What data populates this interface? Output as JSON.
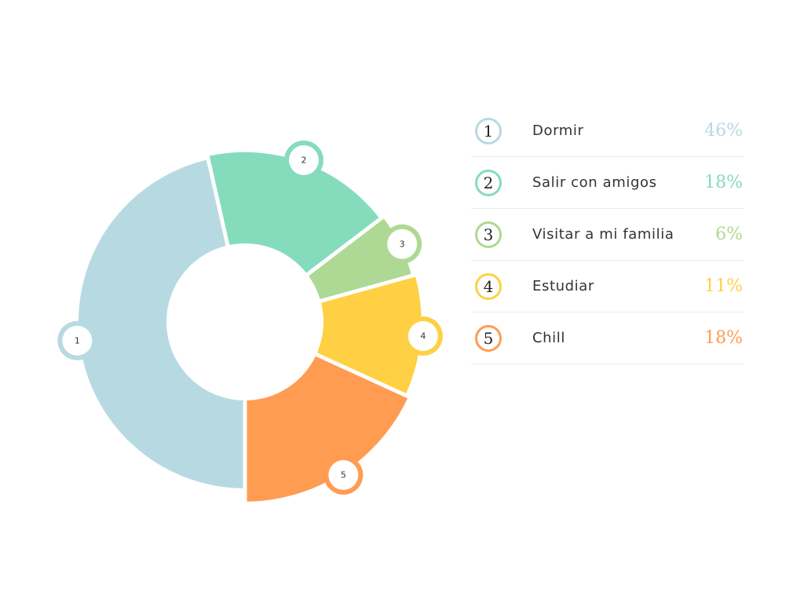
{
  "chart_data": {
    "type": "pie",
    "categories": [
      "Dormir",
      "Salir con amigos",
      "Visitar a mi familia",
      "Estudiar",
      "Chill"
    ],
    "markers": [
      "1",
      "2",
      "3",
      "4",
      "5"
    ],
    "values": [
      46,
      18,
      6,
      11,
      18
    ],
    "value_labels": [
      "46%",
      "18%",
      "6%",
      "11%",
      "18%"
    ],
    "colors": [
      "#b7d9e2",
      "#84dcbc",
      "#aed994",
      "#ffd044",
      "#ff9c52"
    ],
    "style": "donut",
    "legend": "right"
  }
}
